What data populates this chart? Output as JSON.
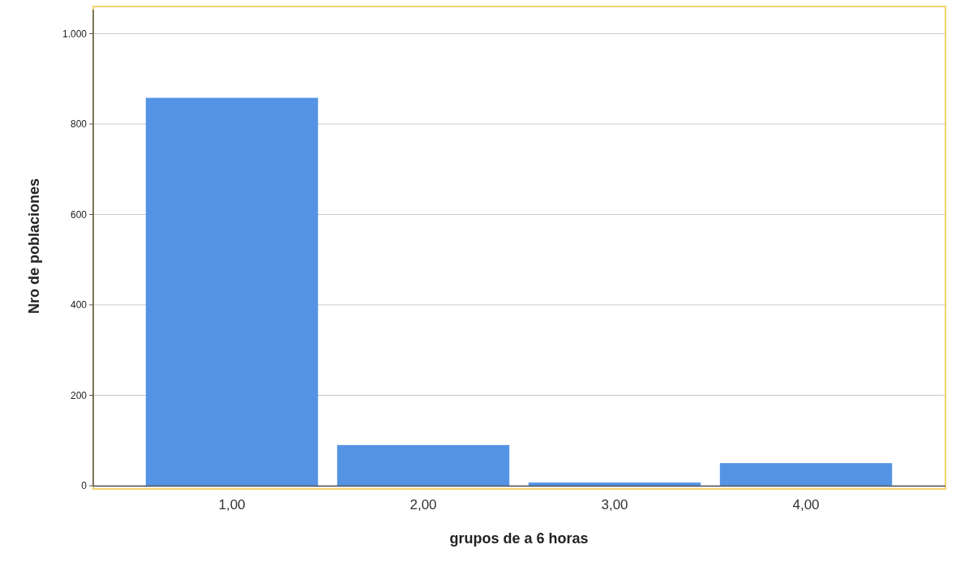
{
  "chart_data": {
    "type": "bar",
    "xlabel": "grupos de a 6 horas",
    "ylabel": "Nro de poblaciones",
    "categories": [
      "1,00",
      "2,00",
      "3,00",
      "4,00"
    ],
    "values": [
      858,
      90,
      7,
      50
    ],
    "color": "#5594e4",
    "ylim": [
      0,
      1060
    ],
    "yticks": [
      0,
      200,
      400,
      600,
      800,
      {
        "value": 1000,
        "label": "1.000"
      }
    ],
    "grid": "y"
  }
}
